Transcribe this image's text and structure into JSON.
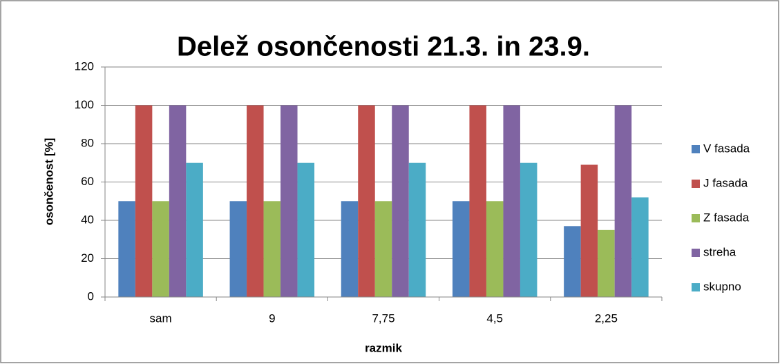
{
  "chart_data": {
    "type": "bar",
    "title": "Delež osončenosti 21.3. in 23.9.",
    "x_label": "razmik",
    "y_label": "osončenost [%]",
    "categories": [
      "sam",
      "9",
      "7,75",
      "4,5",
      "2,25"
    ],
    "series": [
      {
        "name": "V fasada",
        "color": "#4f81bd",
        "values": [
          50,
          50,
          50,
          50,
          37
        ]
      },
      {
        "name": "J fasada",
        "color": "#c0504d",
        "values": [
          100,
          100,
          100,
          100,
          69
        ]
      },
      {
        "name": "Z fasada",
        "color": "#9bbb59",
        "values": [
          50,
          50,
          50,
          50,
          35
        ]
      },
      {
        "name": "streha",
        "color": "#8064a2",
        "values": [
          100,
          100,
          100,
          100,
          100
        ]
      },
      {
        "name": "skupno",
        "color": "#4bacc6",
        "values": [
          70,
          70,
          70,
          70,
          52
        ]
      }
    ],
    "ylim": [
      0,
      120
    ],
    "yticks": [
      0,
      20,
      40,
      60,
      80,
      100,
      120
    ],
    "grid": true,
    "legend": "right"
  }
}
